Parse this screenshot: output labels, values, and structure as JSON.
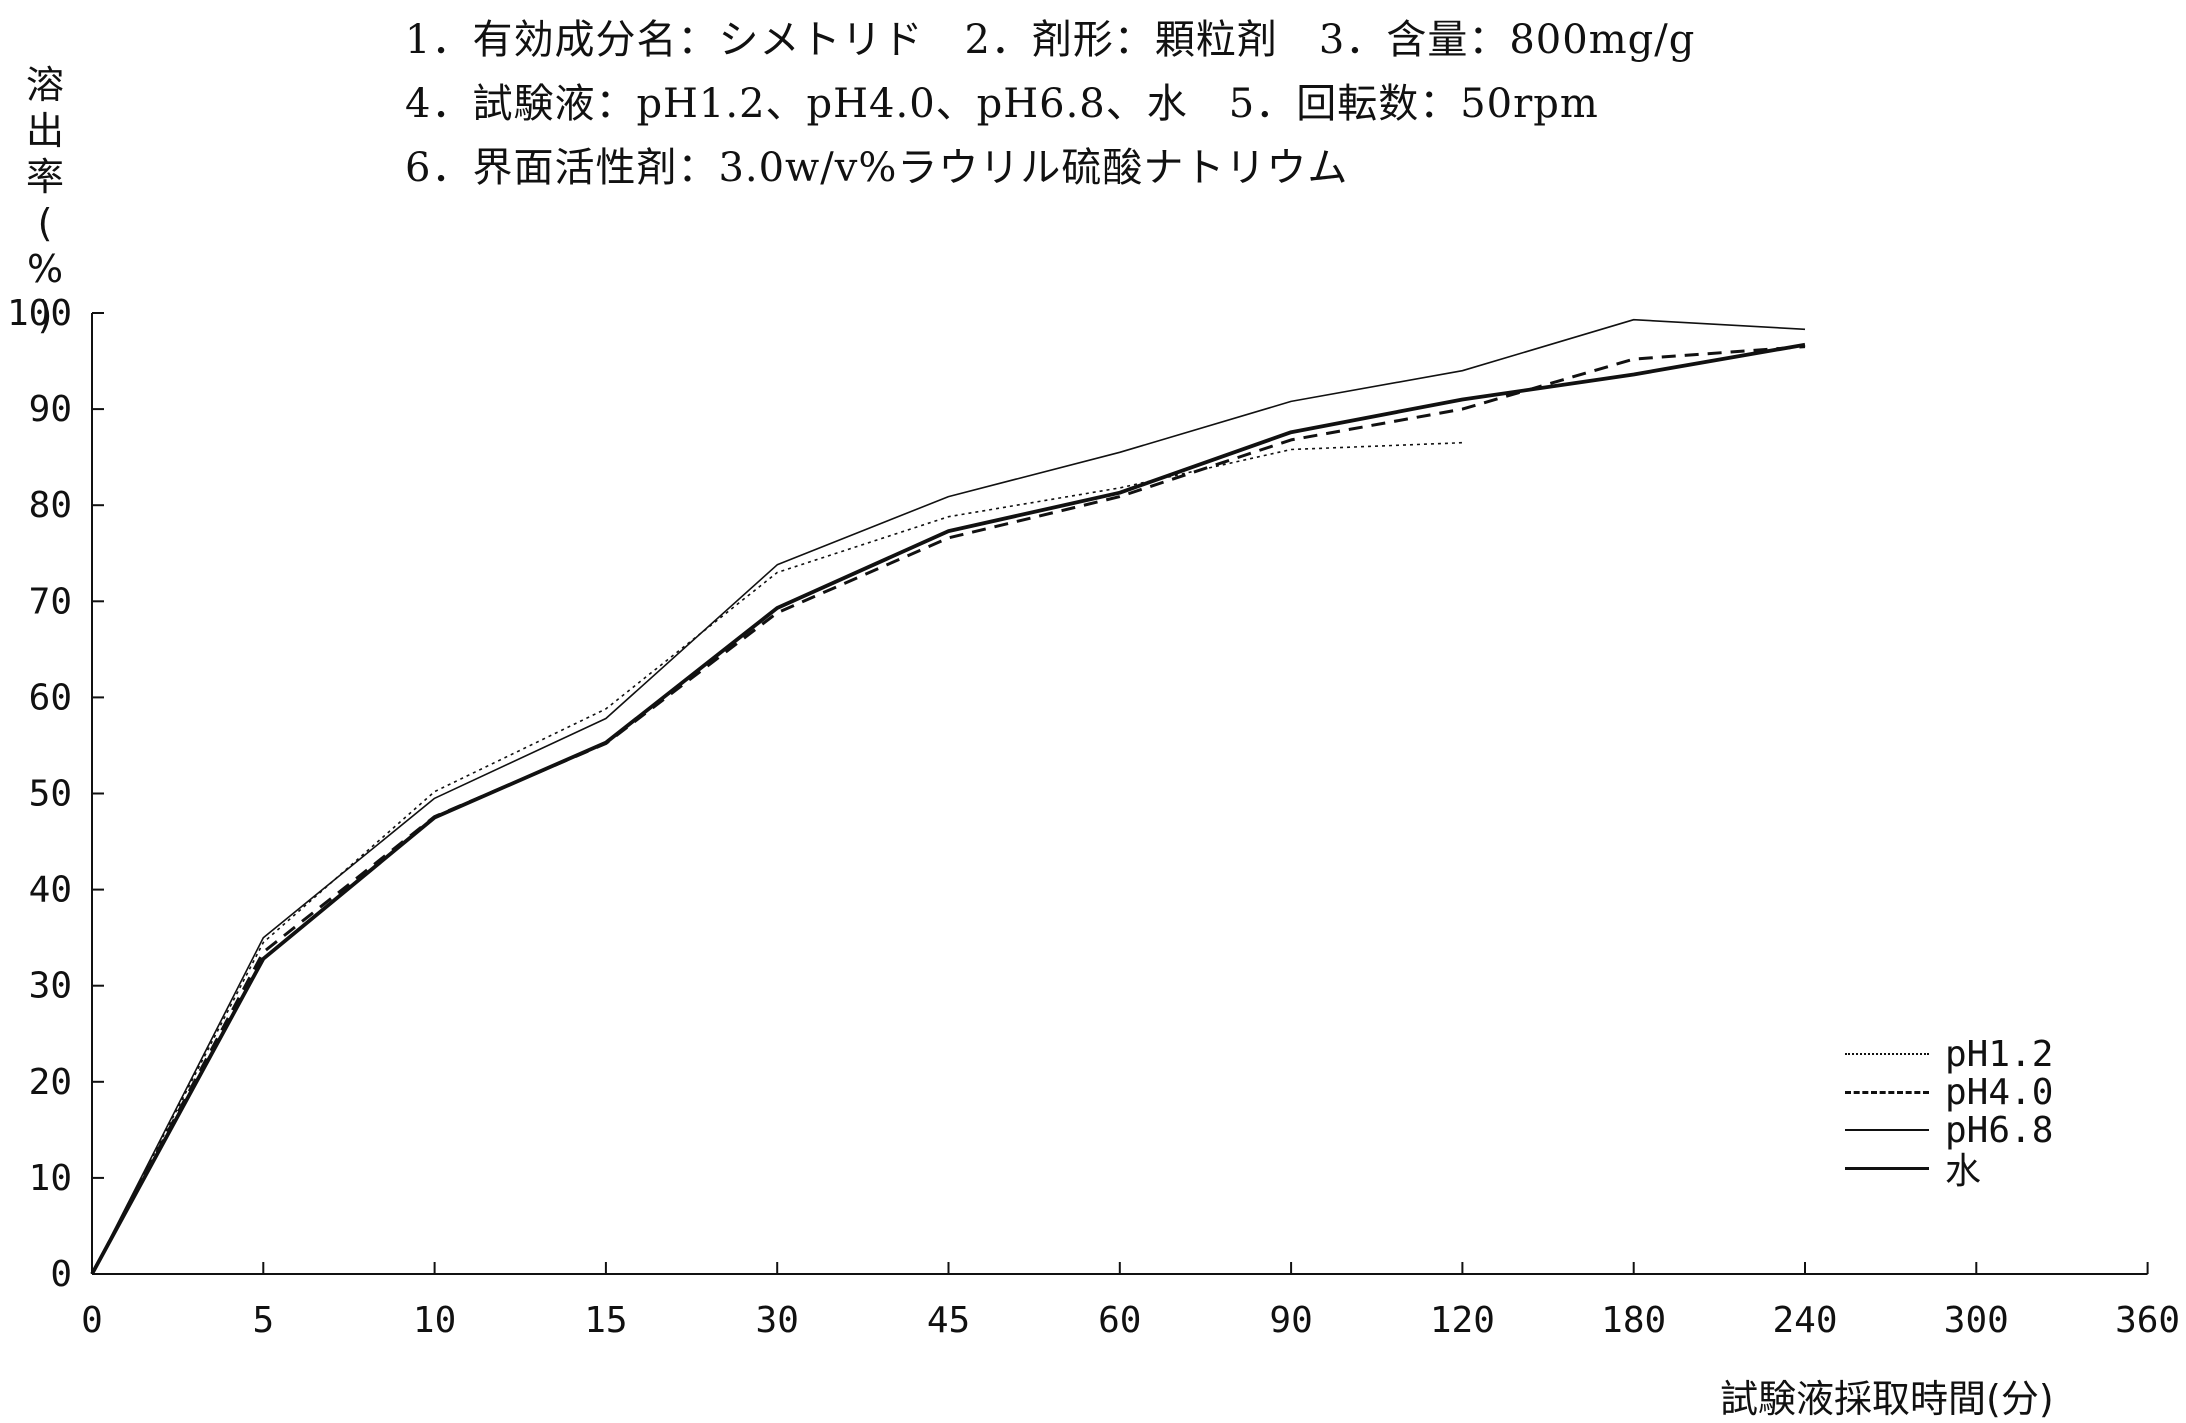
{
  "header": {
    "lines": [
      "1．有効成分名：シメトリド　2．剤形：顆粒剤　3．含量：800mg/g",
      "4．試験液：pH1.2、pH4.0、pH6.8、水　5．回転数：50rpm",
      "6．界面活性剤：3.0w/v%ラウリル硫酸ナトリウム"
    ]
  },
  "chart_data": {
    "type": "line",
    "ylabel": "溶出率(%)",
    "xlabel": "試験液採取時間(分)",
    "categories": [
      "0",
      "5",
      "10",
      "15",
      "30",
      "45",
      "60",
      "90",
      "120",
      "180",
      "240",
      "300",
      "360"
    ],
    "ylim": [
      0,
      100
    ],
    "yticks": [
      "0",
      "10",
      "20",
      "30",
      "40",
      "50",
      "60",
      "70",
      "80",
      "90",
      "100"
    ],
    "grid": false,
    "legend_position": "bottom-right",
    "series": [
      {
        "name": "pH1.2",
        "style": "dotted",
        "values": [
          0,
          34.5,
          50.2,
          58.8,
          73.0,
          78.8,
          81.8,
          85.8,
          86.5,
          null,
          null,
          null,
          null
        ]
      },
      {
        "name": "pH4.0",
        "style": "dashed",
        "values": [
          0,
          33.5,
          47.6,
          55.2,
          68.8,
          76.6,
          80.9,
          86.8,
          90.0,
          95.2,
          96.5,
          null,
          null
        ]
      },
      {
        "name": "pH6.8",
        "style": "thin",
        "values": [
          0,
          35.0,
          49.5,
          57.8,
          73.8,
          80.9,
          85.5,
          90.8,
          94.0,
          99.3,
          98.3,
          null,
          null
        ]
      },
      {
        "name": "水",
        "style": "thick",
        "values": [
          0,
          32.8,
          47.5,
          55.3,
          69.3,
          77.3,
          81.3,
          87.6,
          91.0,
          93.6,
          96.7,
          null,
          null
        ]
      }
    ]
  }
}
